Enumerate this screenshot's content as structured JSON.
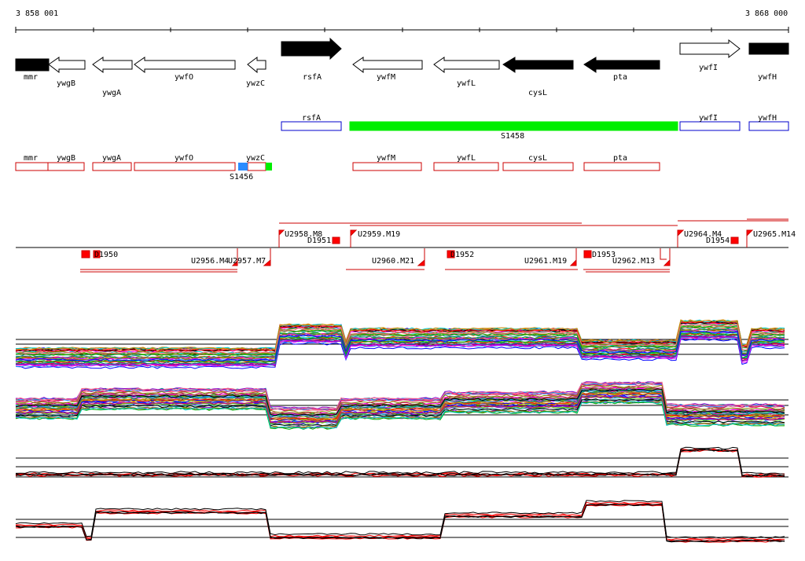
{
  "coord_start": "3 858 001",
  "coord_end": "3 868 000",
  "genes": [
    {
      "name": "mmr",
      "dir": "left",
      "filled": true
    },
    {
      "name": "ywgB",
      "dir": "left",
      "filled": false
    },
    {
      "name": "ywgA",
      "dir": "left",
      "filled": false
    },
    {
      "name": "ywfO",
      "dir": "left",
      "filled": false
    },
    {
      "name": "ywzC",
      "dir": "left",
      "filled": false
    },
    {
      "name": "rsfA",
      "dir": "right",
      "filled": true
    },
    {
      "name": "ywfM",
      "dir": "left",
      "filled": false
    },
    {
      "name": "ywfL",
      "dir": "left",
      "filled": false
    },
    {
      "name": "cysL",
      "dir": "left",
      "filled": true
    },
    {
      "name": "pta",
      "dir": "left",
      "filled": true
    },
    {
      "name": "ywfI",
      "dir": "right",
      "filled": false
    },
    {
      "name": "ywfH",
      "dir": "left",
      "filled": true
    }
  ],
  "upper_boxes": [
    {
      "name": "rsfA",
      "color": "#0000cc"
    },
    {
      "name": "S1458",
      "color": "#00ee00"
    },
    {
      "name": "ywfI",
      "color": "#0000cc"
    },
    {
      "name": "ywfH",
      "color": "#0000cc"
    }
  ],
  "lower_boxes": [
    {
      "name": "mmr"
    },
    {
      "name": "ywgB"
    },
    {
      "name": "ywgA"
    },
    {
      "name": "ywfO"
    },
    {
      "name": "ywzC"
    },
    {
      "name": "S1456"
    },
    {
      "name": "ywfM"
    },
    {
      "name": "ywfL"
    },
    {
      "name": "cysL"
    },
    {
      "name": "pta"
    }
  ],
  "features_top": [
    "U2958.M8",
    "D1951",
    "U2959.M19",
    "U2964.M4",
    "D1954",
    "U2965.M14"
  ],
  "features_bottom": [
    "D1950",
    "U2956.M4",
    "U2957.M7",
    "U2960.M21",
    "D1952",
    "U2961.M19",
    "D1953",
    "U2962.M13"
  ],
  "colors": {
    "filled_gene": "#000000",
    "box_outline": "#cc0000",
    "feature": "#ff0000",
    "blue": "#0000cc",
    "green": "#00ee00",
    "series_red": "#ff0000"
  }
}
